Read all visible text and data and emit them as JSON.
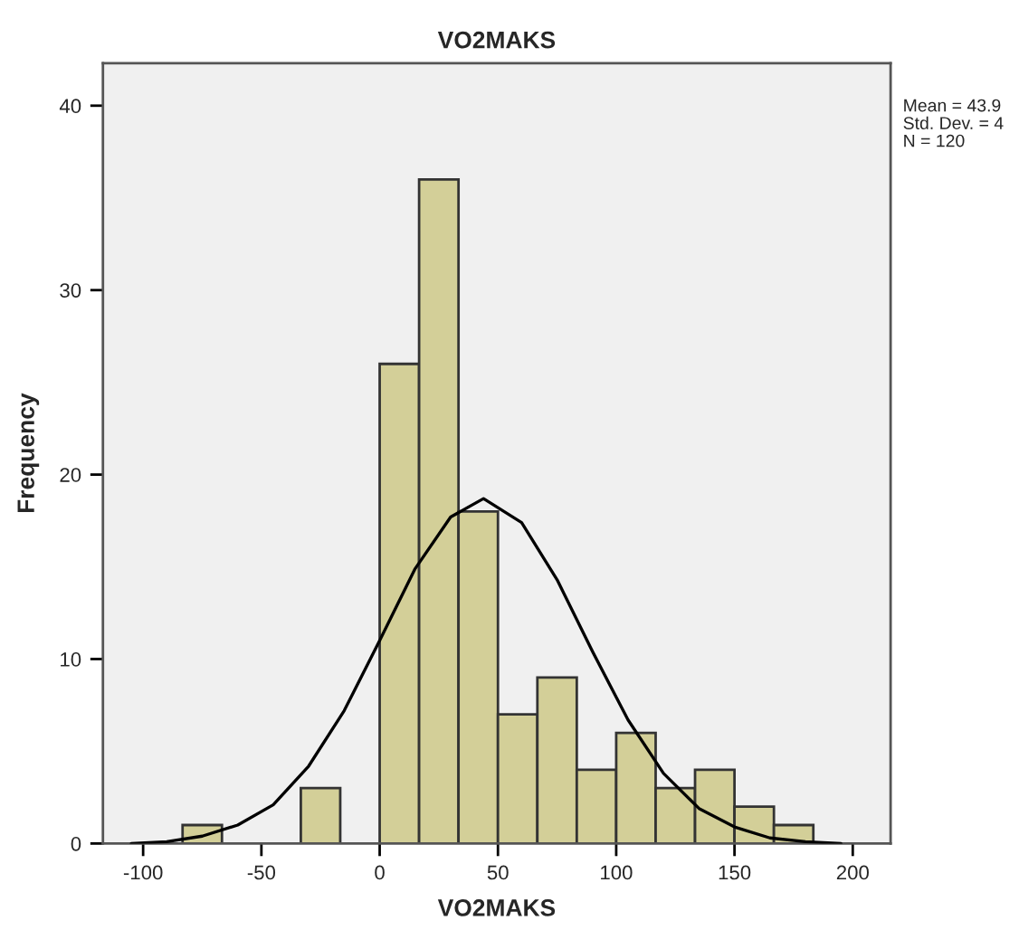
{
  "chart_data": {
    "type": "histogram",
    "title": "VO2MAKS",
    "xlabel": "VO2MAKS",
    "ylabel": "Frequency",
    "series": [
      {
        "color": "#d3cf98",
        "bins": [
          -83.33,
          -66.67,
          -50,
          -33.33,
          -16.67,
          0,
          16.67,
          33.33,
          50,
          66.67,
          83.33,
          100,
          116.67,
          133.33,
          150,
          166.67,
          183.33
        ],
        "values": [
          1,
          0,
          0,
          3,
          0,
          26,
          36,
          18,
          7,
          9,
          4,
          6,
          3,
          4,
          2,
          1
        ]
      },
      {
        "type": "line",
        "color": "#000000",
        "x": [
          -105,
          -90,
          -75,
          -60,
          -45,
          -30,
          -15,
          0,
          15,
          30,
          43.9,
          60,
          75,
          90,
          105,
          120,
          135,
          150,
          165,
          180,
          195
        ],
        "values": [
          0,
          0.1,
          0.4,
          1,
          2.1,
          4.2,
          7.2,
          11,
          14.9,
          17.7,
          18.7,
          17.4,
          14.3,
          10.4,
          6.7,
          3.8,
          1.9,
          0.9,
          0.3,
          0.1,
          0
        ]
      }
    ],
    "xlim": [
      -117,
      216
    ],
    "ylim": [
      0,
      42.3
    ],
    "xticks": [
      -100,
      -50,
      0,
      50,
      100,
      150,
      200
    ],
    "yticks": [
      0,
      10,
      20,
      30,
      40
    ],
    "annotations": [
      "Mean = 43.9",
      "Std. Dev. = 4",
      "N = 120"
    ]
  }
}
